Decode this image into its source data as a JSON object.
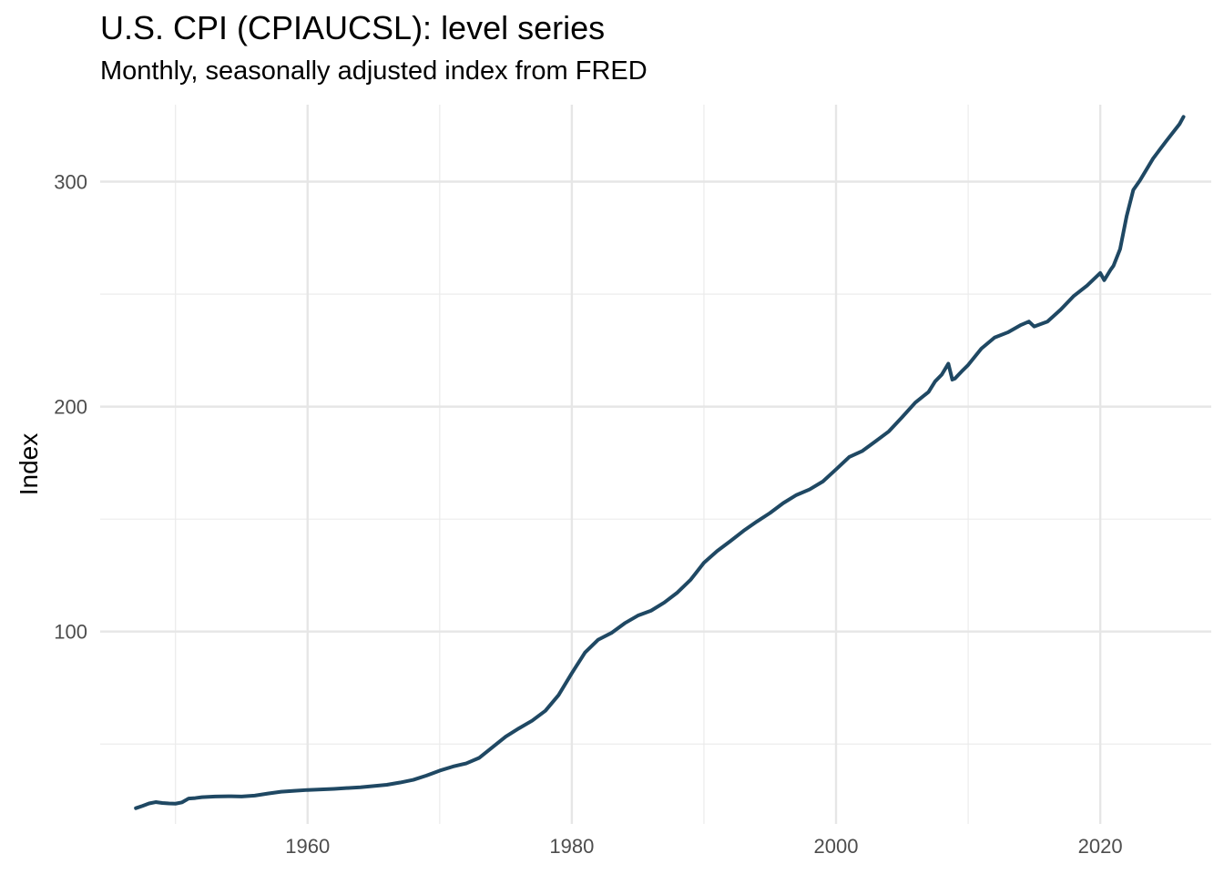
{
  "chart_data": {
    "type": "line",
    "title": "U.S. CPI (CPIAUCSL): level series",
    "subtitle": "Monthly, seasonally adjusted index from FRED",
    "xlabel": "",
    "ylabel": "Index",
    "xlim": [
      1944.3,
      2028.4
    ],
    "ylim": [
      14.5,
      334.2
    ],
    "x_ticks": [
      1960,
      1980,
      2000,
      2020
    ],
    "x_tick_labels": [
      "1960",
      "1980",
      "2000",
      "2020"
    ],
    "x_minor_ticks": [
      1950,
      1970,
      1990,
      2010
    ],
    "y_ticks": [
      100,
      200,
      300
    ],
    "y_tick_labels": [
      "100",
      "200",
      "300"
    ],
    "y_minor_ticks": [
      50,
      150,
      250
    ],
    "grid": true,
    "legend": "none",
    "line_color": "#1f4863",
    "series": [
      {
        "name": "CPIAUCSL",
        "x": [
          1947.0,
          1947.5,
          1948.0,
          1948.5,
          1949.0,
          1949.5,
          1950.0,
          1950.5,
          1951.0,
          1951.5,
          1952.0,
          1953.0,
          1954.0,
          1955.0,
          1956.0,
          1957.0,
          1958.0,
          1959.0,
          1960.0,
          1962.0,
          1964.0,
          1966.0,
          1967.0,
          1968.0,
          1969.0,
          1970.0,
          1971.0,
          1972.0,
          1973.0,
          1974.0,
          1975.0,
          1976.0,
          1977.0,
          1978.0,
          1979.0,
          1980.0,
          1981.0,
          1982.0,
          1983.0,
          1984.0,
          1985.0,
          1986.0,
          1987.0,
          1988.0,
          1989.0,
          1990.0,
          1991.0,
          1992.0,
          1993.0,
          1994.0,
          1995.0,
          1996.0,
          1997.0,
          1998.0,
          1999.0,
          2000.0,
          2001.0,
          2002.0,
          2003.0,
          2004.0,
          2005.0,
          2006.0,
          2007.0,
          2007.5,
          2008.0,
          2008.5,
          2008.8,
          2009.0,
          2009.5,
          2010.0,
          2011.0,
          2012.0,
          2013.0,
          2014.0,
          2014.6,
          2015.0,
          2016.0,
          2017.0,
          2018.0,
          2019.0,
          2020.0,
          2020.3,
          2020.8,
          2021.0,
          2021.5,
          2022.0,
          2022.5,
          2023.0,
          2024.0,
          2025.0,
          2026.0,
          2026.3
        ],
        "values": [
          21.5,
          22.5,
          23.6,
          24.2,
          23.8,
          23.6,
          23.5,
          24.1,
          25.8,
          26.0,
          26.4,
          26.7,
          26.8,
          26.7,
          27.1,
          28.0,
          28.8,
          29.2,
          29.6,
          30.1,
          30.8,
          31.9,
          32.9,
          34.1,
          36.0,
          38.2,
          40.0,
          41.4,
          43.9,
          48.6,
          53.3,
          57.0,
          60.4,
          64.8,
          71.8,
          81.5,
          90.7,
          96.4,
          99.4,
          103.7,
          107.1,
          109.3,
          112.9,
          117.4,
          123.1,
          130.6,
          135.8,
          140.2,
          144.8,
          148.9,
          152.7,
          157.1,
          160.7,
          163.2,
          166.7,
          172.1,
          177.6,
          180.3,
          184.6,
          189.0,
          195.3,
          201.8,
          206.5,
          211.2,
          214.2,
          219.1,
          212.0,
          212.5,
          215.6,
          218.5,
          225.8,
          230.7,
          233.0,
          236.3,
          237.8,
          235.6,
          237.8,
          243.1,
          249.2,
          253.8,
          259.4,
          256.2,
          261.0,
          262.6,
          270.0,
          284.8,
          296.3,
          300.5,
          310.3,
          318.1,
          325.6,
          328.8
        ]
      }
    ]
  }
}
